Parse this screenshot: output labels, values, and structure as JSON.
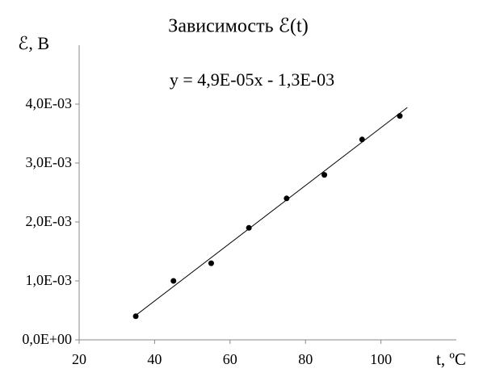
{
  "chart_data": {
    "type": "scatter",
    "title": "Зависимость ℰ(t)",
    "x_label": "t, ºC",
    "y_label": "ℰ, В",
    "x": [
      35,
      45,
      55,
      65,
      75,
      85,
      95,
      105
    ],
    "values": [
      0.0004,
      0.001,
      0.0013,
      0.0019,
      0.0024,
      0.0028,
      0.0034,
      0.0038
    ],
    "color": "#000000",
    "xlim": [
      20,
      120
    ],
    "xticks": [
      20,
      40,
      60,
      80,
      100
    ],
    "ylim": [
      0,
      0.005
    ],
    "yticks": [
      {
        "value": 0,
        "label": "0,0E+00"
      },
      {
        "value": 0.001,
        "label": "1,0E-03"
      },
      {
        "value": 0.002,
        "label": "2,0E-03"
      },
      {
        "value": 0.003,
        "label": "3,0E-03"
      },
      {
        "value": 0.004,
        "label": "4,0E-03"
      }
    ],
    "trendline": {
      "label": "y = 4,9E-05x - 1,3E-03",
      "slope": 4.9e-05,
      "intercept": -0.0013,
      "x": [
        35,
        107
      ]
    },
    "grid": false
  }
}
